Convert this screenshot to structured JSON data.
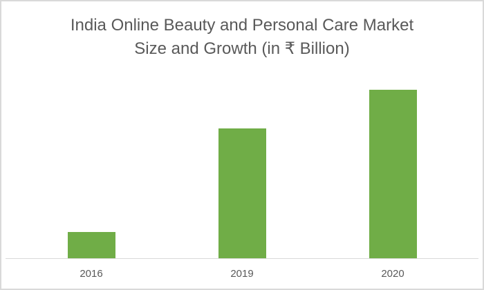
{
  "chart_data": {
    "type": "bar",
    "title": "India Online Beauty and Personal Care Market Size and Growth (in ₹ Billion)",
    "title_lines": [
      "India Online Beauty and Personal Care Market",
      "Size and Growth (in ₹ Billion)"
    ],
    "categories": [
      "2016",
      "2019",
      "2020"
    ],
    "values": [
      38,
      188,
      244
    ],
    "values_note": "relative bar heights (no value axis shown)",
    "xlabel": "",
    "ylabel": "",
    "grid": false,
    "legend": null,
    "bar_color": "#70ad47"
  },
  "colors": {
    "bar": "#70ad47",
    "text": "#595959",
    "axis": "#d9d9d9",
    "border": "#d9d9d9"
  }
}
